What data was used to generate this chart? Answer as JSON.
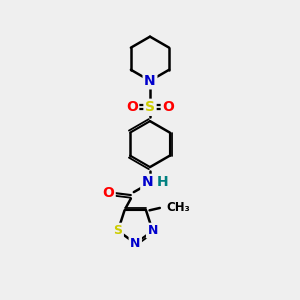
{
  "bg_color": "#efefef",
  "atom_colors": {
    "C": "#000000",
    "N": "#0000cc",
    "O": "#ff0000",
    "S": "#cccc00",
    "H": "#008080"
  },
  "bond_color": "#000000",
  "bond_width": 1.8,
  "fig_w": 3.0,
  "fig_h": 3.0,
  "dpi": 100
}
